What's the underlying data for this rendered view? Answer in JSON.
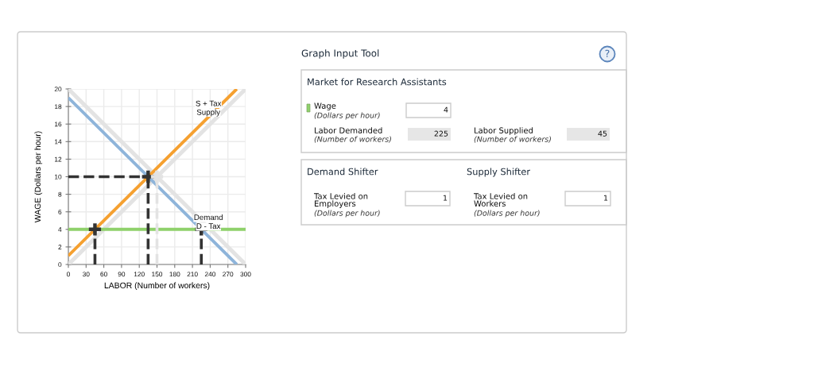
{
  "chart_data": [
    {
      "type": "line",
      "xlabel": "LABOR (Number of workers)",
      "ylabel": "WAGE (Dollars per hour)",
      "xlim": [
        0,
        300
      ],
      "ylim": [
        0,
        20
      ],
      "xticks": [
        0,
        30,
        60,
        90,
        120,
        150,
        180,
        210,
        240,
        270,
        300
      ],
      "yticks": [
        0,
        2,
        4,
        6,
        8,
        10,
        12,
        14,
        16,
        18,
        20
      ],
      "grid": true,
      "series": [
        {
          "name": "Demand",
          "color": "#e3e3e3",
          "x": [
            0,
            300
          ],
          "values": [
            20,
            0
          ]
        },
        {
          "name": "Supply",
          "color": "#e3e3e3",
          "x": [
            0,
            300
          ],
          "values": [
            0,
            20
          ]
        },
        {
          "name": "D - Tax",
          "color": "#8eb4da",
          "x": [
            0,
            285
          ],
          "values": [
            19,
            0
          ]
        },
        {
          "name": "S + Tax",
          "color": "#f5a030",
          "x": [
            0,
            285
          ],
          "values": [
            1,
            20
          ]
        },
        {
          "color": "#8fd16b",
          "x": [
            0,
            300
          ],
          "values": [
            4,
            4
          ]
        },
        {
          "color": "#e3e3e3",
          "x": [
            150,
            150
          ],
          "values": [
            0,
            10
          ],
          "line_style": "dashed"
        },
        {
          "color": "#333333",
          "x": [
            0,
            135
          ],
          "values": [
            10,
            10
          ],
          "line_style": "dashed"
        },
        {
          "color": "#333333",
          "x": [
            135,
            135
          ],
          "values": [
            0,
            10
          ],
          "line_style": "dashed"
        },
        {
          "color": "#333333",
          "x": [
            45,
            45
          ],
          "values": [
            0,
            4
          ],
          "line_style": "dashed"
        },
        {
          "color": "#333333",
          "x": [
            225,
            225
          ],
          "values": [
            0,
            4
          ],
          "line_style": "dashed"
        },
        {
          "type": "scatter",
          "marker": "cross",
          "x": [
            135,
            150,
            45,
            225
          ],
          "values": [
            10,
            10,
            4,
            4
          ],
          "colors": [
            "#333333",
            "#e3e3e3",
            "#333333",
            "#333333"
          ]
        }
      ]
    },
    {
      "type": "other",
      "title": "Graph Input Tool",
      "annotations": [
        "?",
        "Market for Research Assistants",
        "Wage",
        "(Dollars per hour)",
        "4",
        "Labor Demanded",
        "(Number of workers)",
        "225",
        "Labor Supplied",
        "(Number of workers)",
        "45",
        "Demand Shifter",
        "Supply Shifter",
        "Tax Levied on\nEmployers",
        "(Dollars per hour)",
        "1",
        "Tax Levied on\nWorkers",
        "(Dollars per hour)",
        "1"
      ]
    }
  ]
}
